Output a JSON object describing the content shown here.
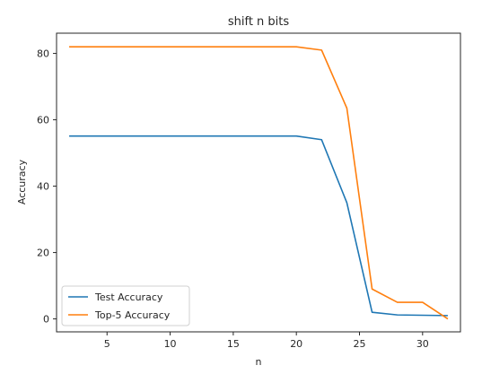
{
  "chart_data": {
    "type": "line",
    "title": "shift n bits",
    "xlabel": "n",
    "ylabel": "Accuracy",
    "xlim": [
      1,
      33
    ],
    "ylim": [
      -3.9,
      86.1
    ],
    "xticks": [
      5,
      10,
      15,
      20,
      25,
      30
    ],
    "yticks": [
      0,
      20,
      40,
      60,
      80
    ],
    "grid": false,
    "legend_position": "lower-left",
    "x": [
      2,
      4,
      6,
      8,
      10,
      12,
      14,
      16,
      18,
      20,
      22,
      24,
      26,
      28,
      30,
      32
    ],
    "series": [
      {
        "name": "Test Accuracy",
        "color": "#1f77b4",
        "values": [
          55.1,
          55.1,
          55.1,
          55.1,
          55.1,
          55.1,
          55.1,
          55.1,
          55.1,
          55.1,
          54.0,
          35.0,
          2.0,
          1.2,
          1.1,
          1.0
        ]
      },
      {
        "name": "Top-5 Accuracy",
        "color": "#ff7f0e",
        "values": [
          82.0,
          82.0,
          82.0,
          82.0,
          82.0,
          82.0,
          82.0,
          82.0,
          82.0,
          82.0,
          81.0,
          63.5,
          9.0,
          5.0,
          5.0,
          0.0
        ]
      }
    ]
  }
}
